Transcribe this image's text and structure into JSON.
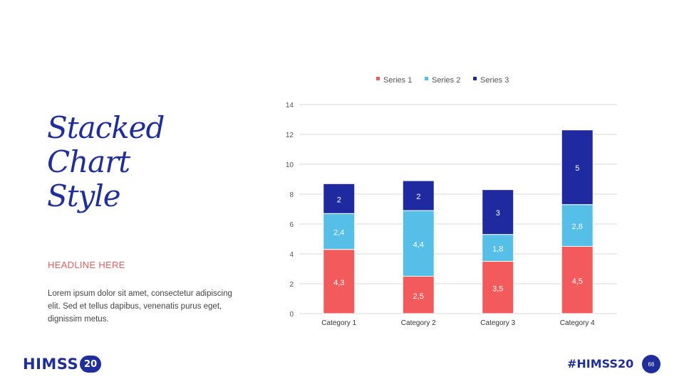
{
  "slide": {
    "title_lines": [
      "Stacked",
      "Chart",
      "Style"
    ],
    "headline": "HEADLINE HERE",
    "body": "Lorem ipsum dolor sit amet, consectetur adipiscing elit. Sed et tellus dapibus, venenatis purus eget, dignissim metus.",
    "logo_text": "HIMSS",
    "logo_badge": "20",
    "hashtag": "#HIMSS20",
    "page_number": "66"
  },
  "colors": {
    "series1": "#f25a5c",
    "series2": "#56bfe8",
    "series3": "#1f2aa0",
    "grid": "#d9d9d9",
    "text": "#555555"
  },
  "chart_data": {
    "type": "bar",
    "stacked": true,
    "categories": [
      "Category 1",
      "Category 2",
      "Category 3",
      "Category 4"
    ],
    "series": [
      {
        "name": "Series 1",
        "values": [
          4.3,
          2.5,
          3.5,
          4.5
        ],
        "labels": [
          "4,3",
          "2,5",
          "3,5",
          "4,5"
        ]
      },
      {
        "name": "Series 2",
        "values": [
          2.4,
          4.4,
          1.8,
          2.8
        ],
        "labels": [
          "2,4",
          "4,4",
          "1,8",
          "2,8"
        ]
      },
      {
        "name": "Series 3",
        "values": [
          2,
          2,
          3,
          5
        ],
        "labels": [
          "2",
          "2",
          "3",
          "5"
        ]
      }
    ],
    "yticks": [
      "0",
      "2",
      "4",
      "6",
      "8",
      "10",
      "12",
      "14"
    ],
    "ylim": [
      0,
      14
    ],
    "legend": "top",
    "grid": true
  }
}
